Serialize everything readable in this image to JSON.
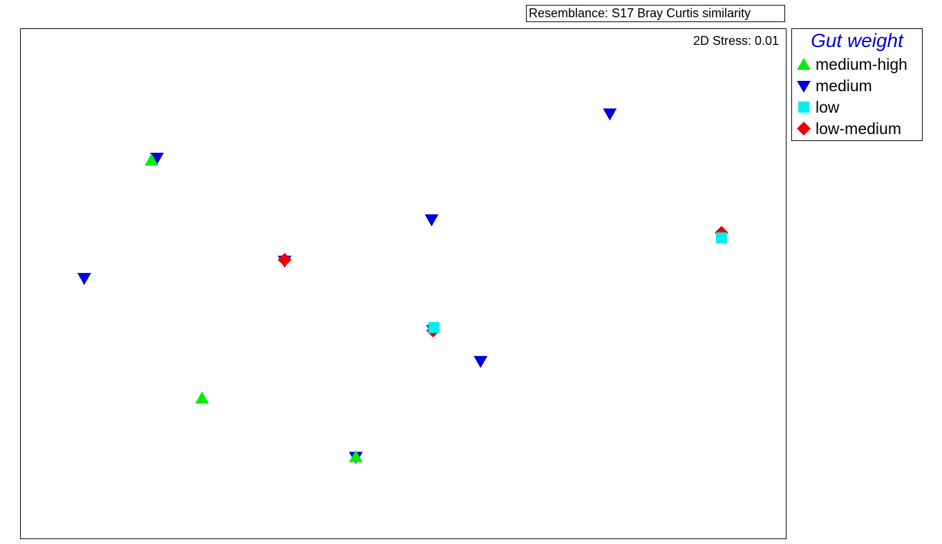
{
  "resemblance": "Resemblance: S17 Bray Curtis similarity",
  "stress": "2D Stress: 0.01",
  "legend": {
    "title": "Gut weight",
    "items": [
      {
        "label": "medium-high",
        "shape": "triangle-up",
        "color": "#00ee00"
      },
      {
        "label": "medium",
        "shape": "triangle-down",
        "color": "#0000dd"
      },
      {
        "label": "low",
        "shape": "square",
        "color": "#00eeee"
      },
      {
        "label": "low-medium",
        "shape": "diamond",
        "color": "#ee0000"
      }
    ]
  },
  "chart_data": {
    "type": "scatter",
    "xlim": [
      0,
      100
    ],
    "ylim": [
      0,
      100
    ],
    "grid": false,
    "legend_position": "right",
    "series": [
      {
        "name": "medium-high",
        "shape": "triangle-up",
        "color": "#00ee00",
        "points": [
          [
            17.1,
            74.2
          ],
          [
            23.7,
            27.5
          ],
          [
            43.8,
            16.0
          ]
        ]
      },
      {
        "name": "medium",
        "shape": "triangle-down",
        "color": "#0000dd",
        "points": [
          [
            17.8,
            74.7
          ],
          [
            8.3,
            51.1
          ],
          [
            34.5,
            54.5
          ],
          [
            53.7,
            62.6
          ],
          [
            77.0,
            83.4
          ],
          [
            60.1,
            34.8
          ],
          [
            43.8,
            16.0
          ],
          [
            53.9,
            40.9
          ]
        ]
      },
      {
        "name": "low",
        "shape": "square",
        "color": "#00eeee",
        "points": [
          [
            54.0,
            41.4
          ],
          [
            91.6,
            59.0
          ]
        ]
      },
      {
        "name": "low-medium",
        "shape": "diamond",
        "color": "#ee0000",
        "points": [
          [
            34.5,
            54.7
          ],
          [
            53.9,
            40.8
          ],
          [
            91.6,
            60.0
          ]
        ]
      }
    ]
  }
}
